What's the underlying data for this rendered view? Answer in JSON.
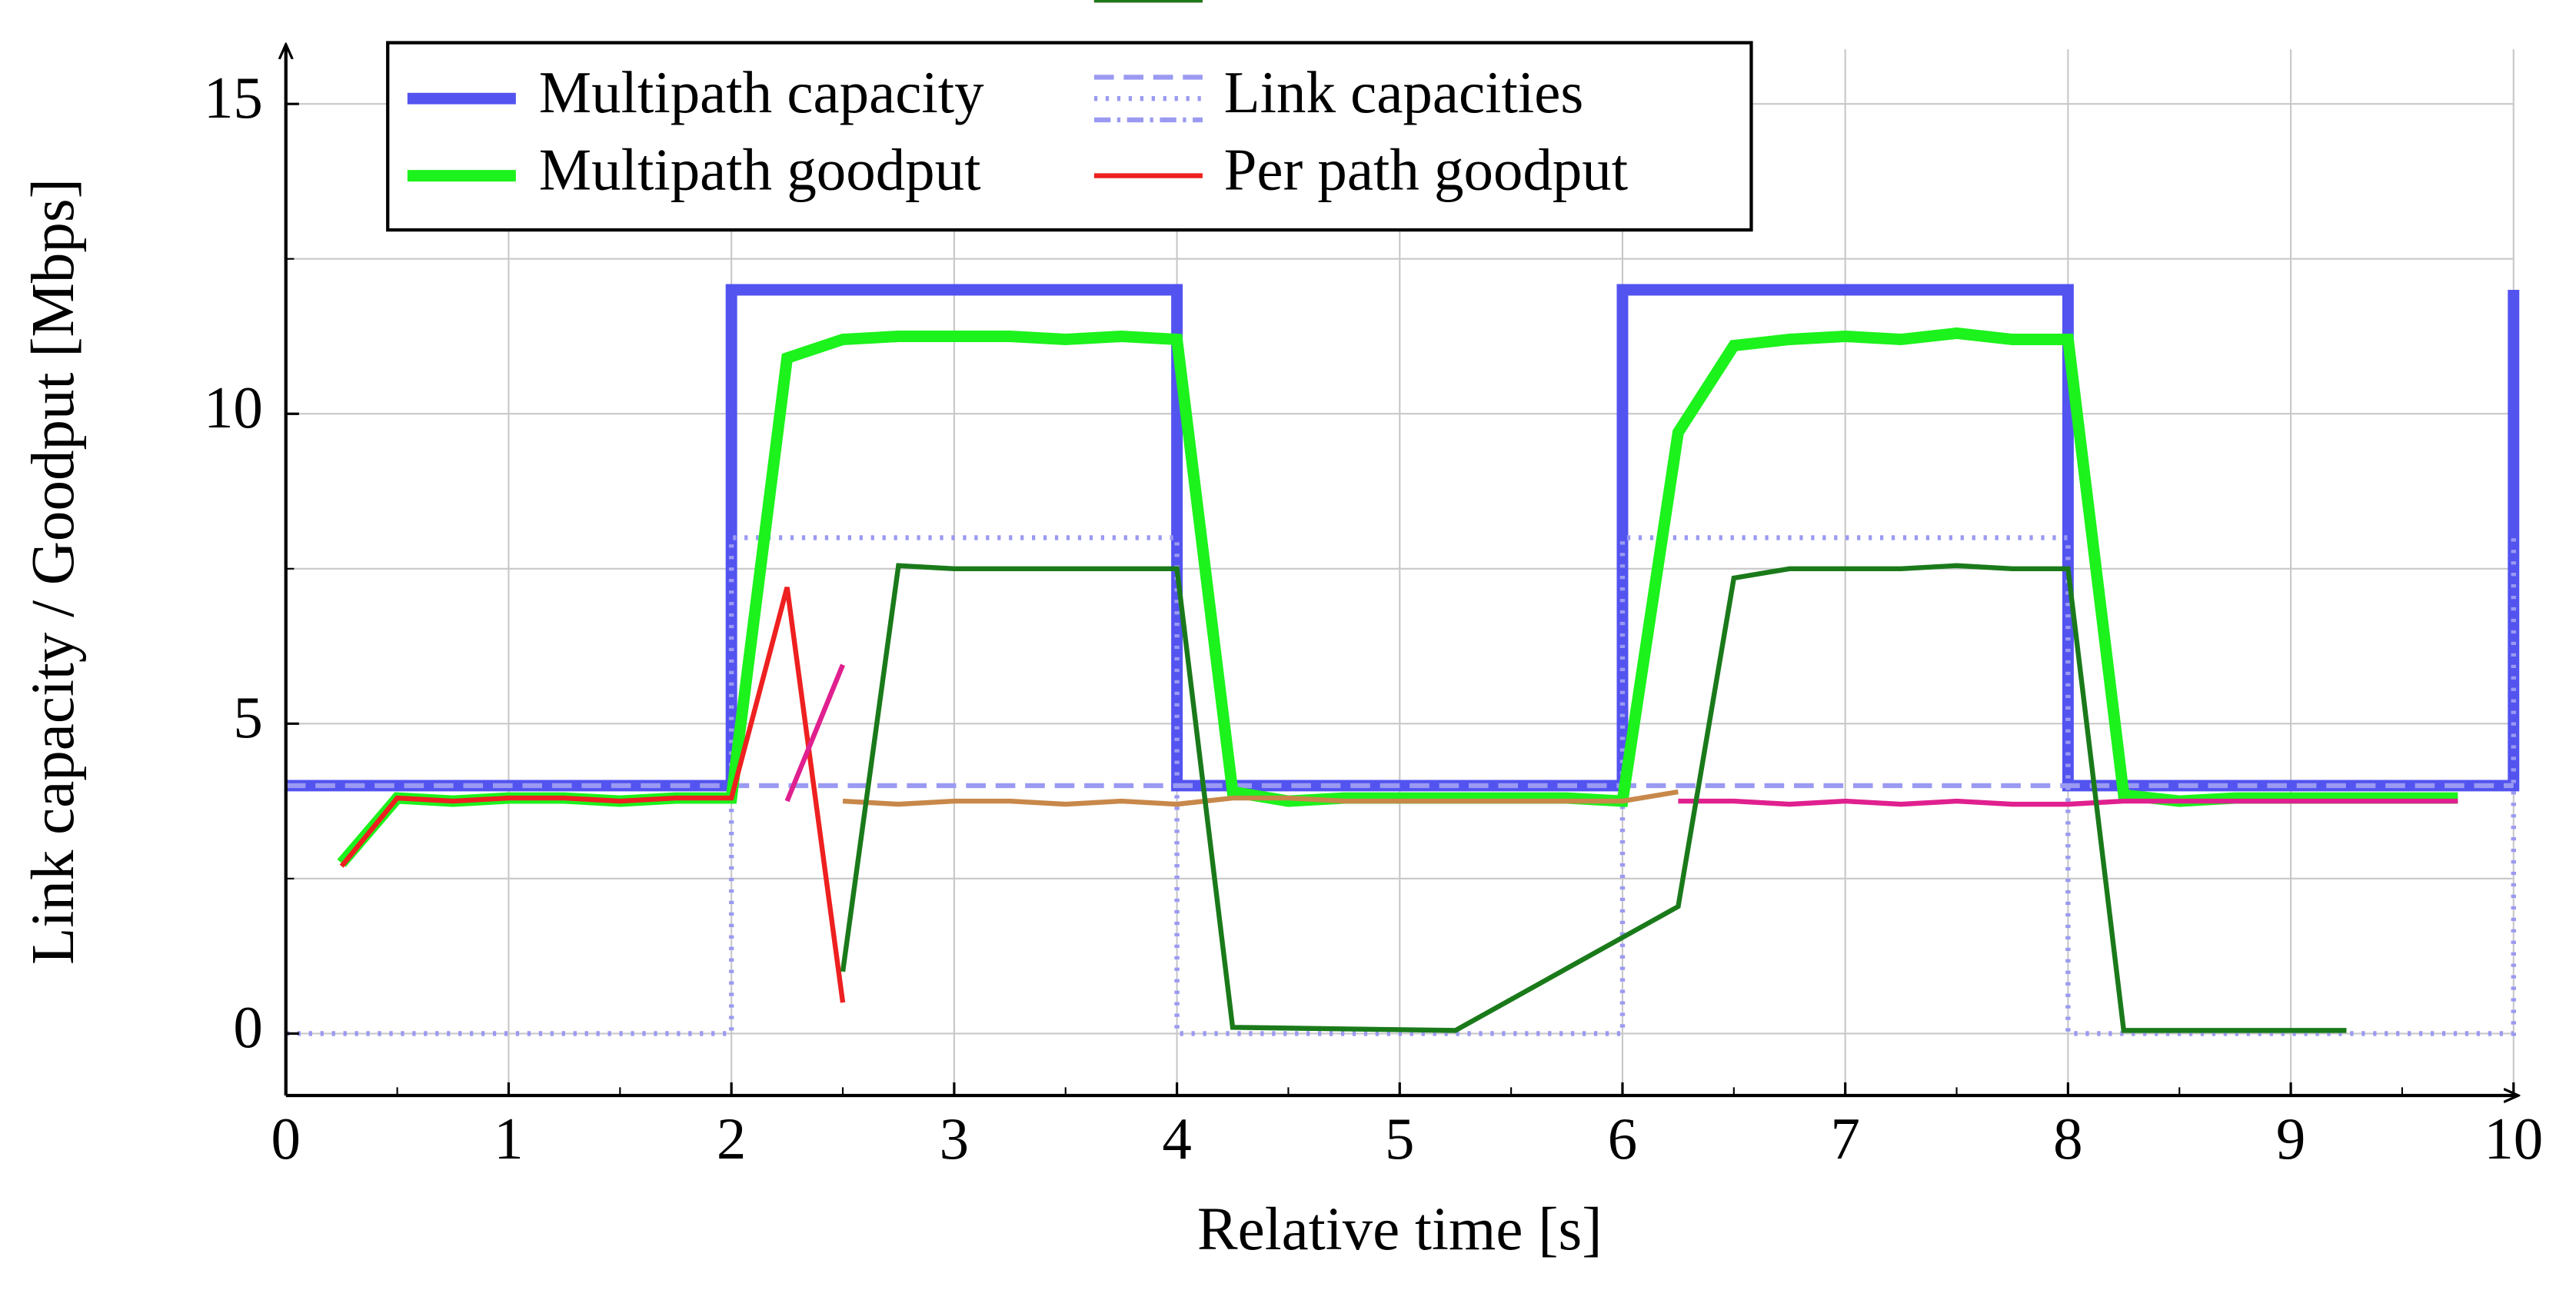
{
  "chart_data": {
    "type": "line",
    "xlabel": "Relative time [s]",
    "ylabel": "Link capacity / Goodput [Mbps]",
    "xlim": [
      0,
      10
    ],
    "ylim": [
      -1,
      16
    ],
    "xticks": [
      0,
      1,
      2,
      3,
      4,
      5,
      6,
      7,
      8,
      9,
      10
    ],
    "yticks": [
      0,
      5,
      10,
      15
    ],
    "xminor": [
      0.5,
      1.5,
      2.5,
      3.5,
      4.5,
      5.5,
      6.5,
      7.5,
      8.5,
      9.5
    ],
    "yminor": [
      2.5,
      7.5,
      12.5
    ],
    "grid": true,
    "series": [
      {
        "name": "Multipath capacity",
        "color": "#5353f0",
        "style": "solid",
        "width": 7,
        "x": [
          0,
          2,
          2,
          4,
          4,
          6,
          6,
          8,
          8,
          10,
          10
        ],
        "values": [
          4,
          4,
          12,
          12,
          4,
          4,
          12,
          12,
          4,
          4,
          12
        ]
      },
      {
        "name": "Link capacities",
        "color": "#9a9af2",
        "style": "dashed",
        "width": 3,
        "x": [
          0,
          10
        ],
        "values": [
          4,
          4
        ]
      },
      {
        "color": "#9a9af2",
        "style": "dotted",
        "width": 3,
        "x": [
          0,
          2,
          2,
          4,
          4,
          6,
          6,
          8,
          8,
          10,
          10
        ],
        "values": [
          0,
          0,
          8,
          8,
          0,
          0,
          8,
          8,
          0,
          0,
          8
        ]
      },
      {
        "name": "Multipath goodput",
        "color": "#1cf21c",
        "style": "solid",
        "width": 7,
        "x": [
          0.25,
          0.5,
          0.75,
          1,
          1.25,
          1.5,
          1.75,
          2,
          2.25,
          2.5,
          2.75,
          3,
          3.25,
          3.5,
          3.75,
          4,
          4.25,
          4.5,
          4.75,
          5,
          5.25,
          5.5,
          5.75,
          6,
          6.25,
          6.5,
          6.75,
          7,
          7.25,
          7.5,
          7.75,
          8,
          8.25,
          8.5,
          8.75,
          9,
          9.25,
          9.5,
          9.75
        ],
        "values": [
          2.75,
          3.8,
          3.75,
          3.8,
          3.8,
          3.75,
          3.8,
          3.8,
          10.9,
          11.2,
          11.25,
          11.25,
          11.25,
          11.2,
          11.25,
          11.2,
          3.9,
          3.75,
          3.8,
          3.8,
          3.8,
          3.8,
          3.8,
          3.75,
          9.7,
          11.1,
          11.2,
          11.25,
          11.2,
          11.3,
          11.2,
          11.2,
          3.85,
          3.75,
          3.8,
          3.8,
          3.8,
          3.8,
          3.8
        ]
      },
      {
        "name": "Per path goodput",
        "color": "#ee2020",
        "style": "solid",
        "width": 3,
        "x": [
          0.25,
          0.5,
          0.75,
          1,
          1.25,
          1.5,
          1.75,
          2,
          2.25,
          2.5
        ],
        "values": [
          2.7,
          3.8,
          3.75,
          3.8,
          3.8,
          3.75,
          3.8,
          3.8,
          7.2,
          0.5
        ]
      },
      {
        "color": "#e0208f",
        "style": "solid",
        "width": 3,
        "x": [
          2.25,
          2.5
        ],
        "values": [
          3.75,
          5.95
        ]
      },
      {
        "color": "#e0208f",
        "style": "solid",
        "width": 3,
        "x": [
          6.25,
          6.5,
          6.75,
          7,
          7.25,
          7.5,
          7.75,
          8,
          8.25,
          8.5,
          8.75,
          9,
          9.25,
          9.5,
          9.75
        ],
        "values": [
          3.75,
          3.75,
          3.7,
          3.75,
          3.7,
          3.75,
          3.7,
          3.7,
          3.75,
          3.75,
          3.75,
          3.75,
          3.75,
          3.75,
          3.75
        ]
      },
      {
        "color": "#c8884a",
        "style": "solid",
        "width": 3,
        "x": [
          2.5,
          2.75,
          3,
          3.25,
          3.5,
          3.75,
          4,
          4.25,
          4.5,
          4.75,
          5,
          5.25,
          5.5,
          5.75,
          6,
          6.25
        ],
        "values": [
          3.75,
          3.7,
          3.75,
          3.75,
          3.7,
          3.75,
          3.7,
          3.8,
          3.8,
          3.75,
          3.75,
          3.75,
          3.75,
          3.75,
          3.75,
          3.9
        ]
      },
      {
        "color": "#1a7a1a",
        "style": "solid",
        "width": 3,
        "x": [
          2.5,
          2.75,
          3,
          3.25,
          3.5,
          3.75,
          4,
          4.25,
          5.25,
          6.25,
          6.5,
          6.75,
          7,
          7.25,
          7.5,
          7.75,
          8,
          8.25,
          9.25
        ],
        "values": [
          1.0,
          7.55,
          7.5,
          7.5,
          7.5,
          7.5,
          7.5,
          0.1,
          0.05,
          2.05,
          7.35,
          7.5,
          7.5,
          7.5,
          7.55,
          7.5,
          7.5,
          0.05,
          0.05
        ]
      }
    ]
  }
}
